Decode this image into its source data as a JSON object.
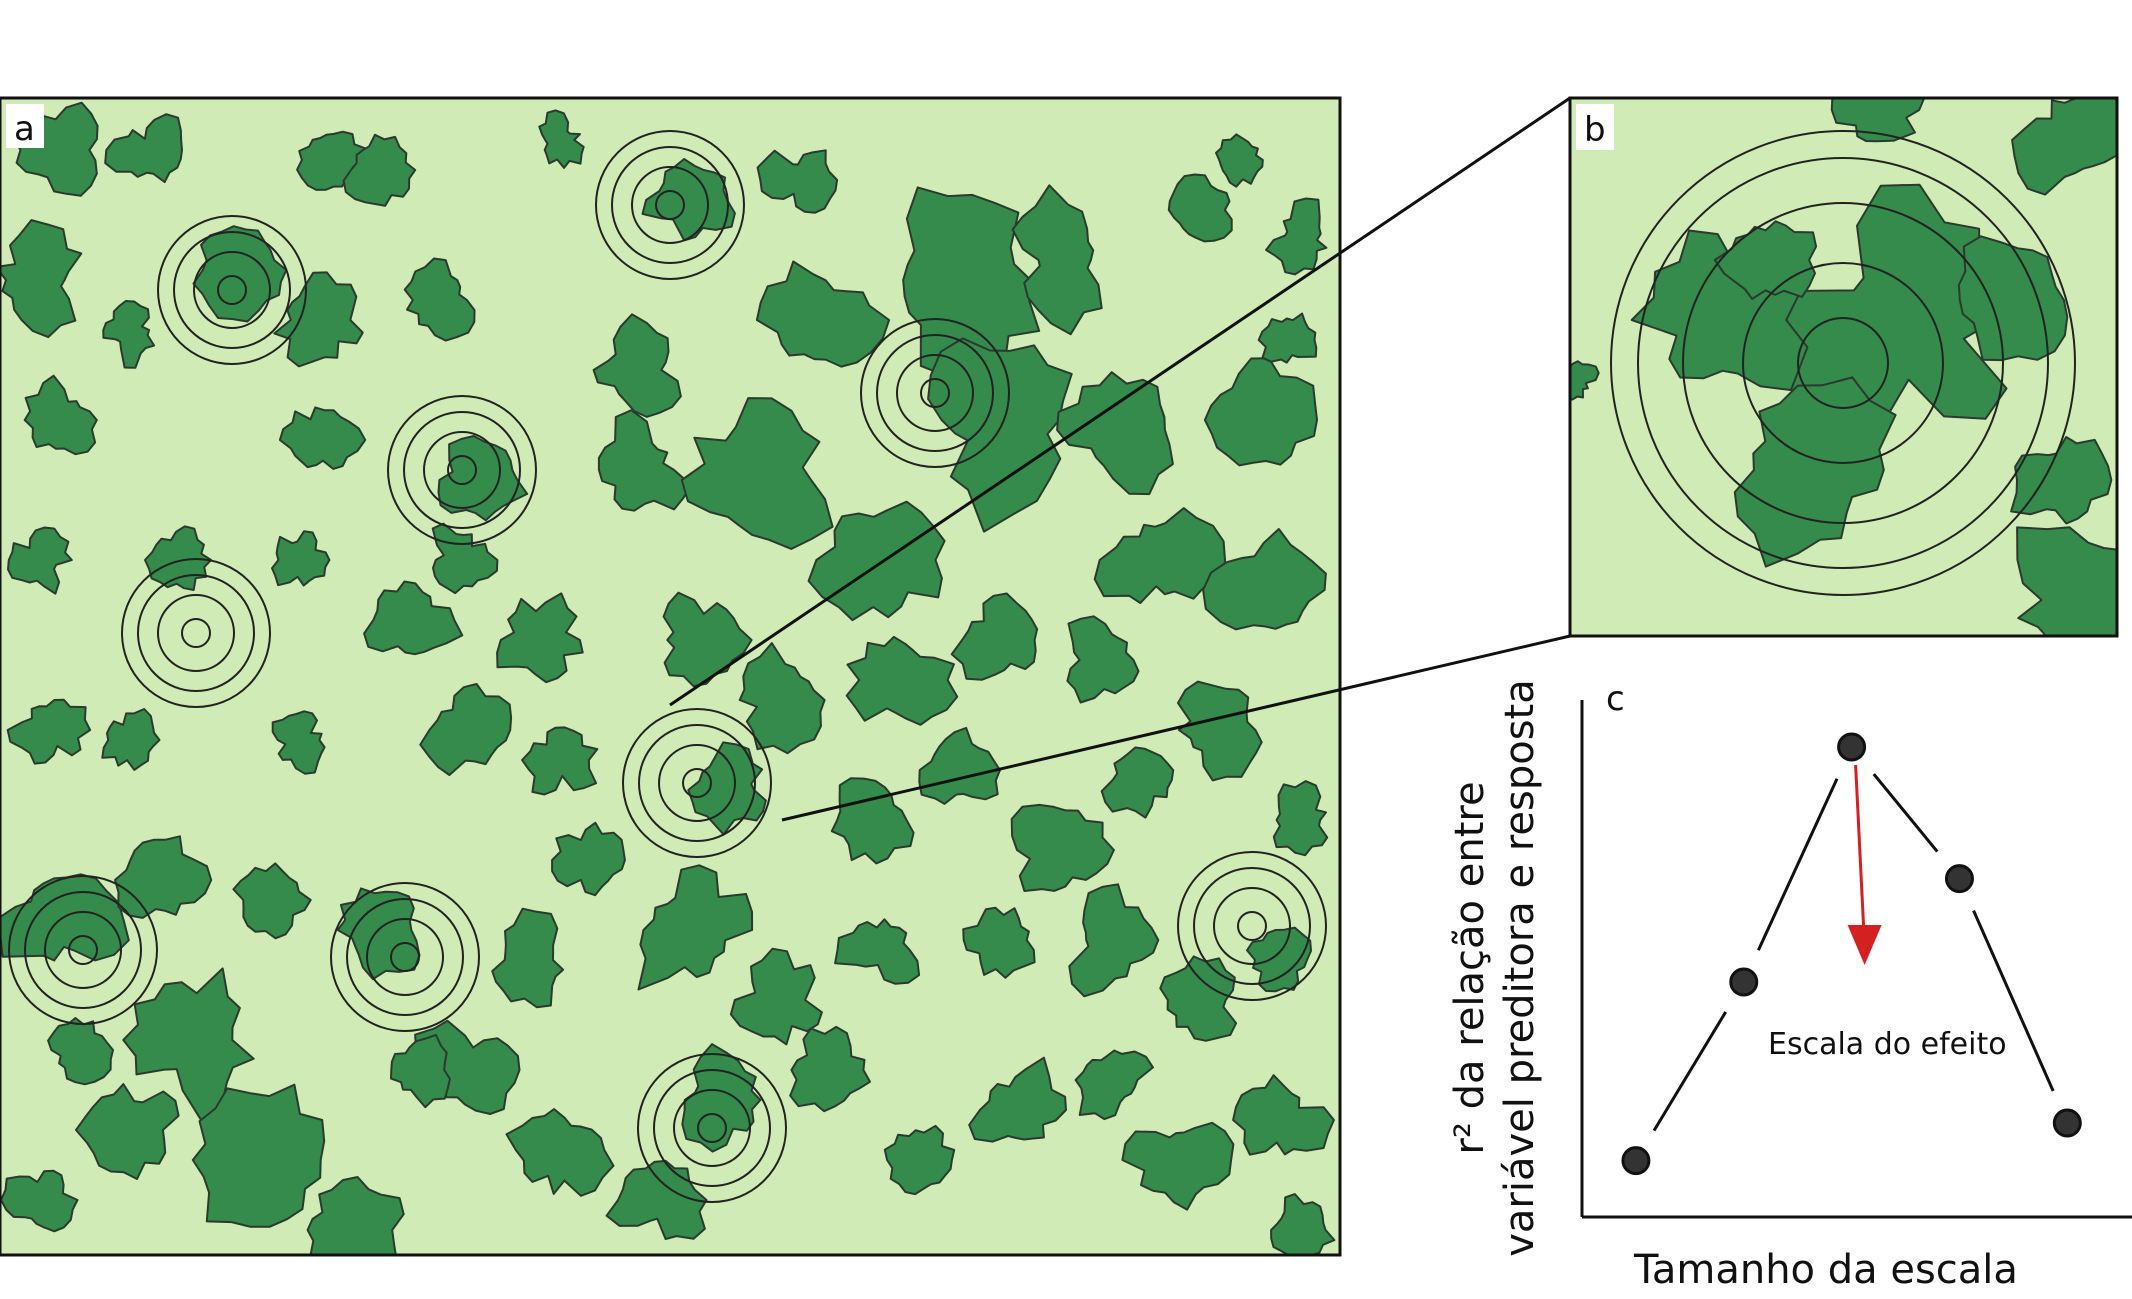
{
  "panels": {
    "a": {
      "label": "a"
    },
    "b": {
      "label": "b"
    },
    "c": {
      "label": "c"
    }
  },
  "colors": {
    "forest": "#348b4b",
    "matrix": "#d0ebb5",
    "outline": "#2b3a2e",
    "arrow": "#d42020",
    "point": "#333333"
  },
  "chart_data": {
    "type": "line",
    "xlabel": "Tamanho da escala",
    "ylabel_line1": "r² da relação entre",
    "ylabel_line2": "variável preditora e resposta",
    "annotation": "Escala do efeito",
    "x": [
      1,
      2,
      3,
      4,
      5
    ],
    "y": [
      0.12,
      0.5,
      1.0,
      0.72,
      0.2
    ],
    "xlim": [
      0.5,
      5.6
    ],
    "ylim": [
      0,
      1.1
    ],
    "ticks": false,
    "grid": false
  }
}
